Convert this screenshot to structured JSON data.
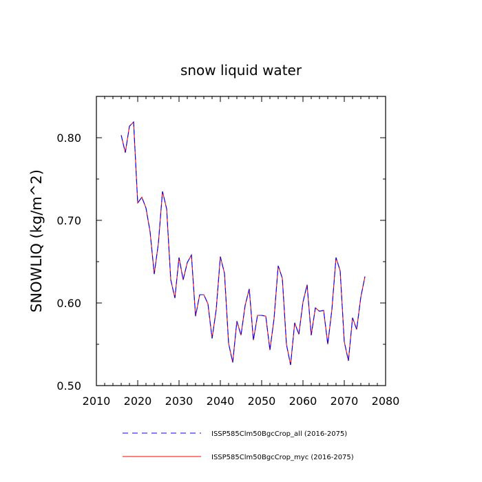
{
  "chart_data": {
    "type": "line",
    "title": "snow liquid water",
    "xlabel": "",
    "ylabel": "SNOWLIQ  (kg/m^2)",
    "xlim": [
      2010,
      2080
    ],
    "ylim": [
      0.5,
      0.85
    ],
    "xticks": [
      2010,
      2020,
      2030,
      2040,
      2050,
      2060,
      2070,
      2080
    ],
    "xtick_labels": [
      "2010",
      "2020",
      "2030",
      "2040",
      "2050",
      "2060",
      "2070",
      "2080"
    ],
    "yticks": [
      0.5,
      0.6,
      0.7,
      0.8
    ],
    "ytick_labels": [
      "0.50",
      "0.60",
      "0.70",
      "0.80"
    ],
    "grid": false,
    "legend_position": "bottom",
    "x": [
      2016,
      2017,
      2018,
      2019,
      2020,
      2021,
      2022,
      2023,
      2024,
      2025,
      2026,
      2027,
      2028,
      2029,
      2030,
      2031,
      2032,
      2033,
      2034,
      2035,
      2036,
      2037,
      2038,
      2039,
      2040,
      2041,
      2042,
      2043,
      2044,
      2045,
      2046,
      2047,
      2048,
      2049,
      2050,
      2051,
      2052,
      2053,
      2054,
      2055,
      2056,
      2057,
      2058,
      2059,
      2060,
      2061,
      2062,
      2063,
      2064,
      2065,
      2066,
      2067,
      2068,
      2069,
      2070,
      2071,
      2072,
      2073,
      2074,
      2075
    ],
    "series": [
      {
        "name": "ISSP585Clm50BgcCrop_all (2016-2075)",
        "color": "#0000ff",
        "dash": "dashed",
        "values": [
          0.803,
          0.782,
          0.814,
          0.819,
          0.721,
          0.728,
          0.715,
          0.686,
          0.635,
          0.672,
          0.735,
          0.714,
          0.628,
          0.606,
          0.655,
          0.628,
          0.649,
          0.658,
          0.584,
          0.61,
          0.61,
          0.599,
          0.557,
          0.592,
          0.656,
          0.636,
          0.551,
          0.528,
          0.578,
          0.561,
          0.597,
          0.617,
          0.555,
          0.585,
          0.585,
          0.584,
          0.543,
          0.581,
          0.645,
          0.63,
          0.55,
          0.525,
          0.576,
          0.562,
          0.601,
          0.622,
          0.561,
          0.594,
          0.59,
          0.591,
          0.55,
          0.592,
          0.655,
          0.639,
          0.553,
          0.53,
          0.582,
          0.568,
          0.607,
          0.632
        ]
      },
      {
        "name": "ISSP585Clm50BgcCrop_myc (2016-2075)",
        "color": "#ff0000",
        "dash": "solid",
        "values": [
          0.803,
          0.782,
          0.814,
          0.819,
          0.721,
          0.728,
          0.715,
          0.686,
          0.635,
          0.672,
          0.735,
          0.714,
          0.628,
          0.606,
          0.655,
          0.628,
          0.649,
          0.658,
          0.584,
          0.61,
          0.61,
          0.599,
          0.557,
          0.592,
          0.656,
          0.636,
          0.551,
          0.528,
          0.578,
          0.561,
          0.597,
          0.617,
          0.555,
          0.585,
          0.585,
          0.584,
          0.543,
          0.581,
          0.645,
          0.63,
          0.55,
          0.525,
          0.576,
          0.562,
          0.601,
          0.622,
          0.561,
          0.594,
          0.59,
          0.591,
          0.55,
          0.592,
          0.655,
          0.639,
          0.553,
          0.53,
          0.582,
          0.568,
          0.607,
          0.632
        ]
      }
    ]
  }
}
